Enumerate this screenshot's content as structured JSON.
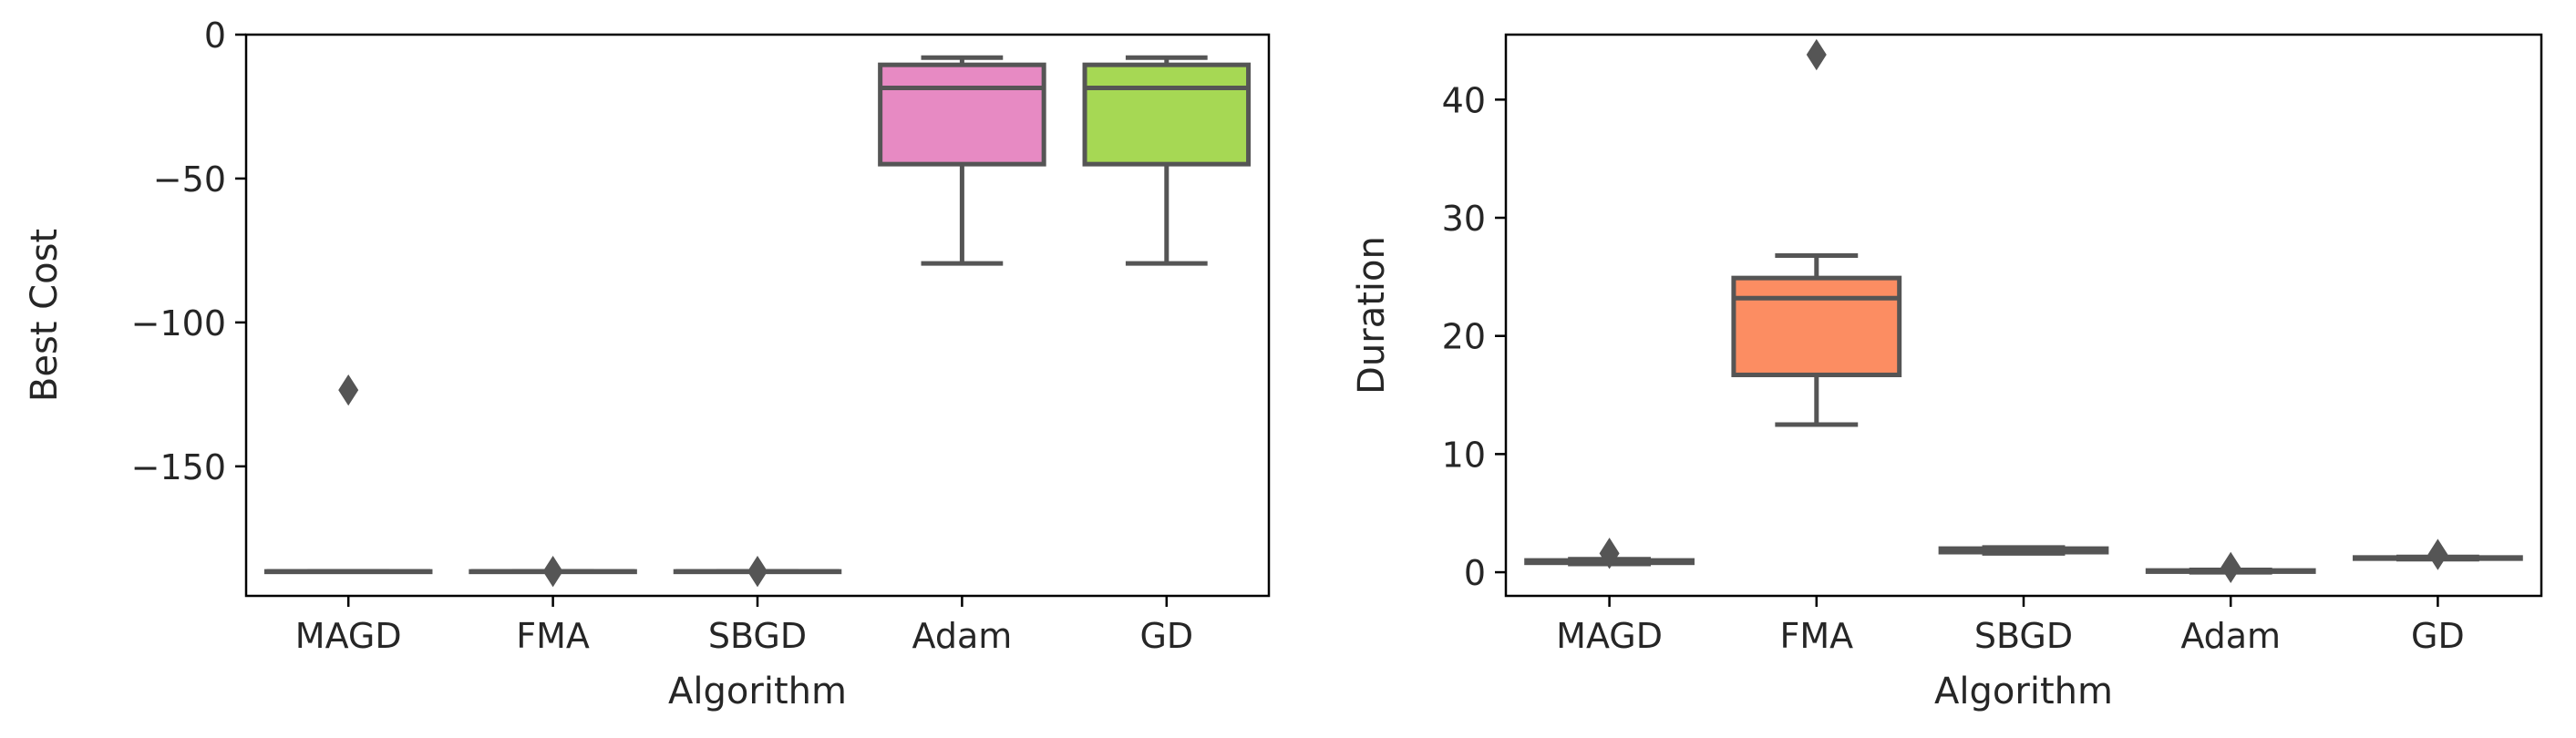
{
  "chart_data": [
    {
      "type": "box",
      "xlabel": "Algorithm",
      "ylabel": "Best Cost",
      "ylim": [
        -195,
        0
      ],
      "yticks": [
        0,
        -50,
        -100,
        -150
      ],
      "ytick_labels": [
        "0",
        "−50",
        "−100",
        "−150"
      ],
      "categories": [
        "MAGD",
        "FMA",
        "SBGD",
        "Adam",
        "GD"
      ],
      "colors": [
        "#8DA0CB",
        "#66C2A5",
        "#FC8D62",
        "#E78AC3",
        "#A6D854"
      ],
      "boxes": [
        {
          "category": "MAGD",
          "whisker_low": -186.5,
          "q1": -186.5,
          "median": -186.5,
          "q3": -186.5,
          "whisker_high": -186.5,
          "outliers": [
            -123.5
          ]
        },
        {
          "category": "FMA",
          "whisker_low": -186.5,
          "q1": -186.5,
          "median": -186.5,
          "q3": -186.5,
          "whisker_high": -186.5,
          "outliers": [
            -186.5
          ]
        },
        {
          "category": "SBGD",
          "whisker_low": -186.5,
          "q1": -186.5,
          "median": -186.5,
          "q3": -186.5,
          "whisker_high": -186.5,
          "outliers": [
            -186.5
          ]
        },
        {
          "category": "Adam",
          "whisker_low": -79.5,
          "q1": -45,
          "median": -18.5,
          "q3": -10.5,
          "whisker_high": -8,
          "outliers": []
        },
        {
          "category": "GD",
          "whisker_low": -79.5,
          "q1": -45,
          "median": -18.5,
          "q3": -10.5,
          "whisker_high": -8,
          "outliers": []
        }
      ]
    },
    {
      "type": "box",
      "xlabel": "Algorithm",
      "ylabel": "Duration",
      "ylim": [
        -2,
        45.5
      ],
      "yticks": [
        0,
        10,
        20,
        30,
        40
      ],
      "ytick_labels": [
        "0",
        "10",
        "20",
        "30",
        "40"
      ],
      "categories": [
        "MAGD",
        "FMA",
        "SBGD",
        "Adam",
        "GD"
      ],
      "colors": [
        "#66C2A5",
        "#FC8D62",
        "#8DA0CB",
        "#E78AC3",
        "#A6D854"
      ],
      "boxes": [
        {
          "category": "MAGD",
          "whisker_low": 0.7,
          "q1": 0.8,
          "median": 0.9,
          "q3": 1.0,
          "whisker_high": 1.1,
          "outliers": [
            1.6
          ]
        },
        {
          "category": "FMA",
          "whisker_low": 12.5,
          "q1": 16.7,
          "median": 23.2,
          "q3": 24.9,
          "whisker_high": 26.8,
          "outliers": [
            43.8
          ]
        },
        {
          "category": "SBGD",
          "whisker_low": 1.6,
          "q1": 1.7,
          "median": 1.9,
          "q3": 2.0,
          "whisker_high": 2.1,
          "outliers": []
        },
        {
          "category": "Adam",
          "whisker_low": 0.0,
          "q1": 0.05,
          "median": 0.1,
          "q3": 0.15,
          "whisker_high": 0.2,
          "outliers": [
            0.4
          ]
        },
        {
          "category": "GD",
          "whisker_low": 1.1,
          "q1": 1.15,
          "median": 1.2,
          "q3": 1.25,
          "whisker_high": 1.3,
          "outliers": [
            1.5
          ]
        }
      ]
    }
  ]
}
